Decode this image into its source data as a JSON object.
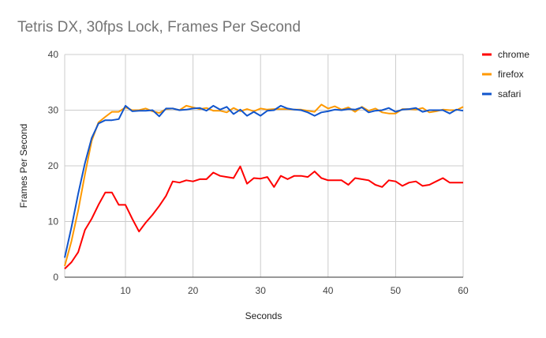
{
  "chart_data": {
    "type": "line",
    "title": "Tetris DX, 30fps Lock, Frames Per Second",
    "xlabel": "Seconds",
    "ylabel": "Frames Per Second",
    "xlim": [
      1,
      60
    ],
    "ylim": [
      0,
      40
    ],
    "xticks": [
      10,
      20,
      30,
      40,
      50,
      60
    ],
    "yticks": [
      0,
      10,
      20,
      30,
      40
    ],
    "grid": true,
    "legend_position": "right",
    "x_start": 1,
    "series": [
      {
        "name": "chrome",
        "color": "#ff0000",
        "values": [
          1.5,
          2.7,
          4.5,
          8.5,
          10.5,
          13,
          15.2,
          15.2,
          13,
          13,
          10.5,
          8.2,
          9.8,
          11.2,
          12.8,
          14.6,
          17.2,
          17,
          17.4,
          17.2,
          17.6,
          17.6,
          18.8,
          18.2,
          18,
          17.8,
          19.9,
          16.8,
          17.8,
          17.7,
          18,
          16.2,
          18.2,
          17.6,
          18.2,
          18.2,
          18,
          19,
          17.8,
          17.4,
          17.4,
          17.4,
          16.6,
          17.8,
          17.6,
          17.4,
          16.6,
          16.2,
          17.4,
          17.2,
          16.4,
          17,
          17.2,
          16.4,
          16.6,
          17.2,
          17.8,
          17,
          17,
          17
        ]
      },
      {
        "name": "firefox",
        "color": "#ff9900",
        "values": [
          2,
          6.5,
          12,
          18.5,
          24.5,
          27.8,
          28.8,
          29.7,
          29.7,
          30.5,
          30,
          30,
          30.3,
          29.8,
          29.5,
          30.2,
          30.3,
          30,
          30.8,
          30.5,
          30.2,
          30.4,
          29.9,
          29.9,
          29.6,
          30.4,
          29.8,
          30.2,
          29.8,
          30.3,
          30.1,
          30.2,
          30.2,
          30.2,
          30.1,
          30.1,
          29.9,
          29.7,
          31,
          30.3,
          30.7,
          30.1,
          30.5,
          29.7,
          30.6,
          29.9,
          30.3,
          29.6,
          29.4,
          29.4,
          30.2,
          30.2,
          30.1,
          30.4,
          29.6,
          29.8,
          30.1,
          30,
          30,
          30.6
        ]
      },
      {
        "name": "safari",
        "color": "#1155cc",
        "values": [
          3.5,
          9,
          15,
          20.5,
          25,
          27.6,
          28.2,
          28.2,
          28.4,
          30.8,
          29.8,
          29.9,
          29.9,
          30,
          28.9,
          30.3,
          30.3,
          30,
          30.1,
          30.3,
          30.4,
          29.9,
          30.8,
          30.1,
          30.6,
          29.3,
          30.1,
          29,
          29.7,
          29,
          29.9,
          30,
          30.8,
          30.3,
          30.1,
          30,
          29.6,
          29,
          29.6,
          29.8,
          30.1,
          30,
          30.2,
          30.1,
          30.5,
          29.6,
          29.9,
          30,
          30.4,
          29.7,
          30.1,
          30.2,
          30.4,
          29.7,
          30,
          30,
          30,
          29.4,
          30.1,
          29.9
        ]
      }
    ]
  }
}
